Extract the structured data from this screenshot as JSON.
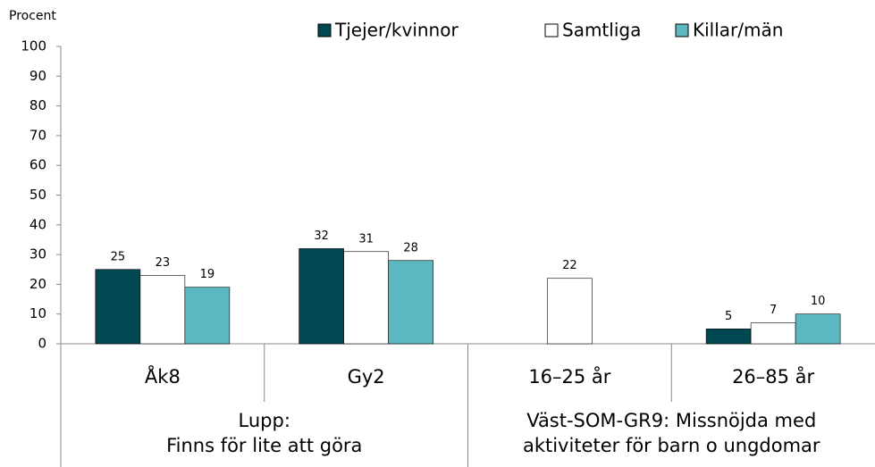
{
  "chart_data": {
    "type": "bar",
    "y_label": "Procent",
    "categories": [
      "Åk8",
      "Gy2",
      "16–25 år",
      "26–85 år"
    ],
    "series": [
      {
        "name": "Tjejer/kvinnor",
        "color": "#004851",
        "values": [
          25,
          32,
          null,
          5
        ]
      },
      {
        "name": "Samtliga",
        "color": "#ffffff",
        "values": [
          23,
          31,
          22,
          7
        ]
      },
      {
        "name": "Killar/män",
        "color": "#5bb8c0",
        "values": [
          19,
          28,
          null,
          10
        ]
      }
    ],
    "groups": [
      {
        "lines": [
          "Lupp:",
          "Finns för lite att göra"
        ],
        "size": 2
      },
      {
        "lines": [
          "Väst-SOM-GR9: Missnöjda med",
          "aktiviteter för barn o ungdomar"
        ],
        "size": 2
      }
    ],
    "ylim": [
      0,
      100
    ],
    "yticks": [
      0,
      10,
      20,
      30,
      40,
      50,
      60,
      70,
      80,
      90,
      100
    ],
    "legend": "top"
  }
}
